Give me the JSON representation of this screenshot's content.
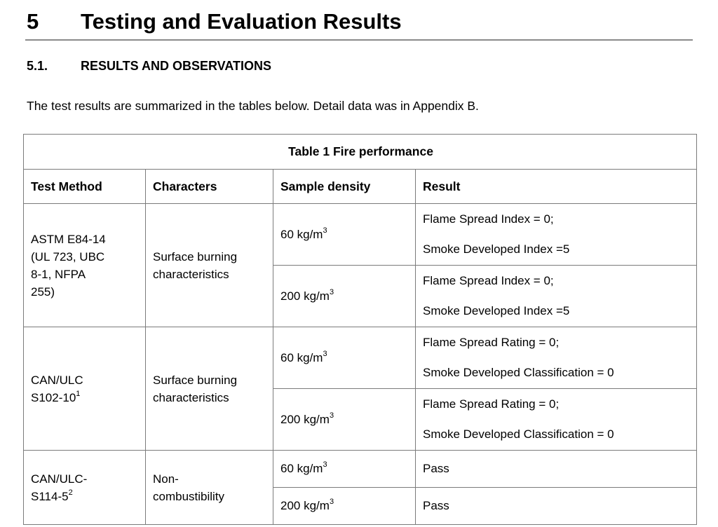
{
  "page": {
    "heading_number": "5",
    "heading_title": "Testing and Evaluation Results",
    "subheading_number": "5.1.",
    "subheading_title": "RESULTS AND OBSERVATIONS",
    "intro": "The test results are summarized in the tables below. Detail data was in Appendix B."
  },
  "colors": {
    "table_border": "#7b7b7b",
    "heading_rule": "#8a8a8a",
    "text": "#000000"
  },
  "table": {
    "title": "Table 1 Fire performance",
    "columns": [
      "Test Method",
      "Characters",
      "Sample density",
      "Result"
    ],
    "groups": [
      {
        "method_lines": [
          "ASTM E84-14",
          "(UL 723, UBC",
          "8-1, NFPA",
          "255)"
        ],
        "method_sup": "",
        "characters_lines": [
          "Surface burning",
          "characteristics"
        ],
        "rows": [
          {
            "density_base": "60 kg/m",
            "density_sup": "3",
            "result_lines": [
              "Flame Spread Index = 0;",
              "Smoke Developed Index =5"
            ]
          },
          {
            "density_base": "200 kg/m",
            "density_sup": "3",
            "result_lines": [
              "Flame Spread Index = 0;",
              "Smoke Developed Index =5"
            ]
          }
        ]
      },
      {
        "method_lines": [
          "CAN/ULC",
          "S102-10"
        ],
        "method_sup": "1",
        "characters_lines": [
          "Surface burning",
          "characteristics"
        ],
        "rows": [
          {
            "density_base": "60 kg/m",
            "density_sup": "3",
            "result_lines": [
              "Flame Spread Rating = 0;",
              "Smoke Developed Classification = 0"
            ]
          },
          {
            "density_base": "200 kg/m",
            "density_sup": "3",
            "result_lines": [
              "Flame Spread Rating = 0;",
              "Smoke Developed Classification = 0"
            ]
          }
        ]
      },
      {
        "method_lines": [
          "CAN/ULC-",
          "S114-5"
        ],
        "method_sup": "2",
        "characters_lines": [
          "Non-",
          "combustibility"
        ],
        "rows": [
          {
            "density_base": "60 kg/m",
            "density_sup": "3",
            "result_lines": [
              "Pass"
            ]
          },
          {
            "density_base": "200 kg/m",
            "density_sup": "3",
            "result_lines": [
              "Pass"
            ]
          }
        ]
      }
    ]
  }
}
